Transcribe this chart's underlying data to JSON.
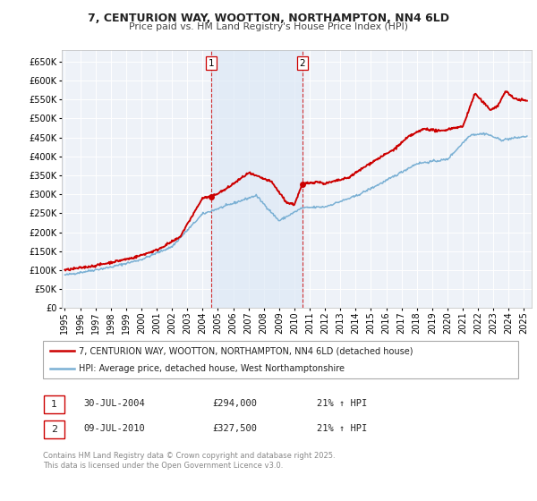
{
  "title": "7, CENTURION WAY, WOOTTON, NORTHAMPTON, NN4 6LD",
  "subtitle": "Price paid vs. HM Land Registry's House Price Index (HPI)",
  "background_color": "#ffffff",
  "plot_bg_color": "#eef2f8",
  "grid_color": "#ffffff",
  "hpi_line_color": "#7ab0d4",
  "price_line_color": "#cc0000",
  "ylim": [
    0,
    680000
  ],
  "yticks": [
    0,
    50000,
    100000,
    150000,
    200000,
    250000,
    300000,
    350000,
    400000,
    450000,
    500000,
    550000,
    600000,
    650000
  ],
  "ytick_labels": [
    "£0",
    "£50K",
    "£100K",
    "£150K",
    "£200K",
    "£250K",
    "£300K",
    "£350K",
    "£400K",
    "£450K",
    "£500K",
    "£550K",
    "£600K",
    "£650K"
  ],
  "xlim_start": 1994.8,
  "xlim_end": 2025.5,
  "xtick_years": [
    1995,
    1996,
    1997,
    1998,
    1999,
    2000,
    2001,
    2002,
    2003,
    2004,
    2005,
    2006,
    2007,
    2008,
    2009,
    2010,
    2011,
    2012,
    2013,
    2014,
    2015,
    2016,
    2017,
    2018,
    2019,
    2020,
    2021,
    2022,
    2023,
    2024,
    2025
  ],
  "sale1_x": 2004.58,
  "sale1_y": 294000,
  "sale1_label": "1",
  "sale1_date": "30-JUL-2004",
  "sale1_price": "£294,000",
  "sale1_hpi": "21% ↑ HPI",
  "sale2_x": 2010.53,
  "sale2_y": 327500,
  "sale2_label": "2",
  "sale2_date": "09-JUL-2010",
  "sale2_price": "£327,500",
  "sale2_hpi": "21% ↑ HPI",
  "legend_line1": "7, CENTURION WAY, WOOTTON, NORTHAMPTON, NN4 6LD (detached house)",
  "legend_line2": "HPI: Average price, detached house, West Northamptonshire",
  "footnote": "Contains HM Land Registry data © Crown copyright and database right 2025.\nThis data is licensed under the Open Government Licence v3.0.",
  "shaded_region_start": 2004.58,
  "shaded_region_end": 2010.53,
  "hpi_key_years": [
    1995.0,
    1998.0,
    2000.0,
    2002.0,
    2004.0,
    2007.5,
    2009.0,
    2010.5,
    2012.0,
    2014.0,
    2016.0,
    2018.0,
    2020.0,
    2021.5,
    2022.5,
    2023.5,
    2025.2
  ],
  "hpi_key_vals": [
    87000,
    108000,
    128000,
    162000,
    248000,
    297000,
    230000,
    264000,
    267000,
    295000,
    336000,
    381000,
    392000,
    457000,
    460000,
    443000,
    453000
  ],
  "price_key_years": [
    1995.0,
    1997.0,
    1999.5,
    2001.0,
    2002.5,
    2004.0,
    2004.58,
    2005.5,
    2007.0,
    2008.5,
    2009.5,
    2010.0,
    2010.53,
    2011.5,
    2012.0,
    2013.5,
    2015.0,
    2016.5,
    2017.5,
    2018.5,
    2019.5,
    2020.5,
    2021.0,
    2021.8,
    2022.3,
    2022.8,
    2023.3,
    2023.8,
    2024.3,
    2025.2
  ],
  "price_key_vals": [
    100000,
    112000,
    133000,
    153000,
    186000,
    290000,
    294000,
    313000,
    356000,
    333000,
    278000,
    273000,
    327500,
    333000,
    328000,
    343000,
    383000,
    418000,
    453000,
    473000,
    466000,
    476000,
    478000,
    566000,
    543000,
    523000,
    533000,
    573000,
    553000,
    546000
  ]
}
